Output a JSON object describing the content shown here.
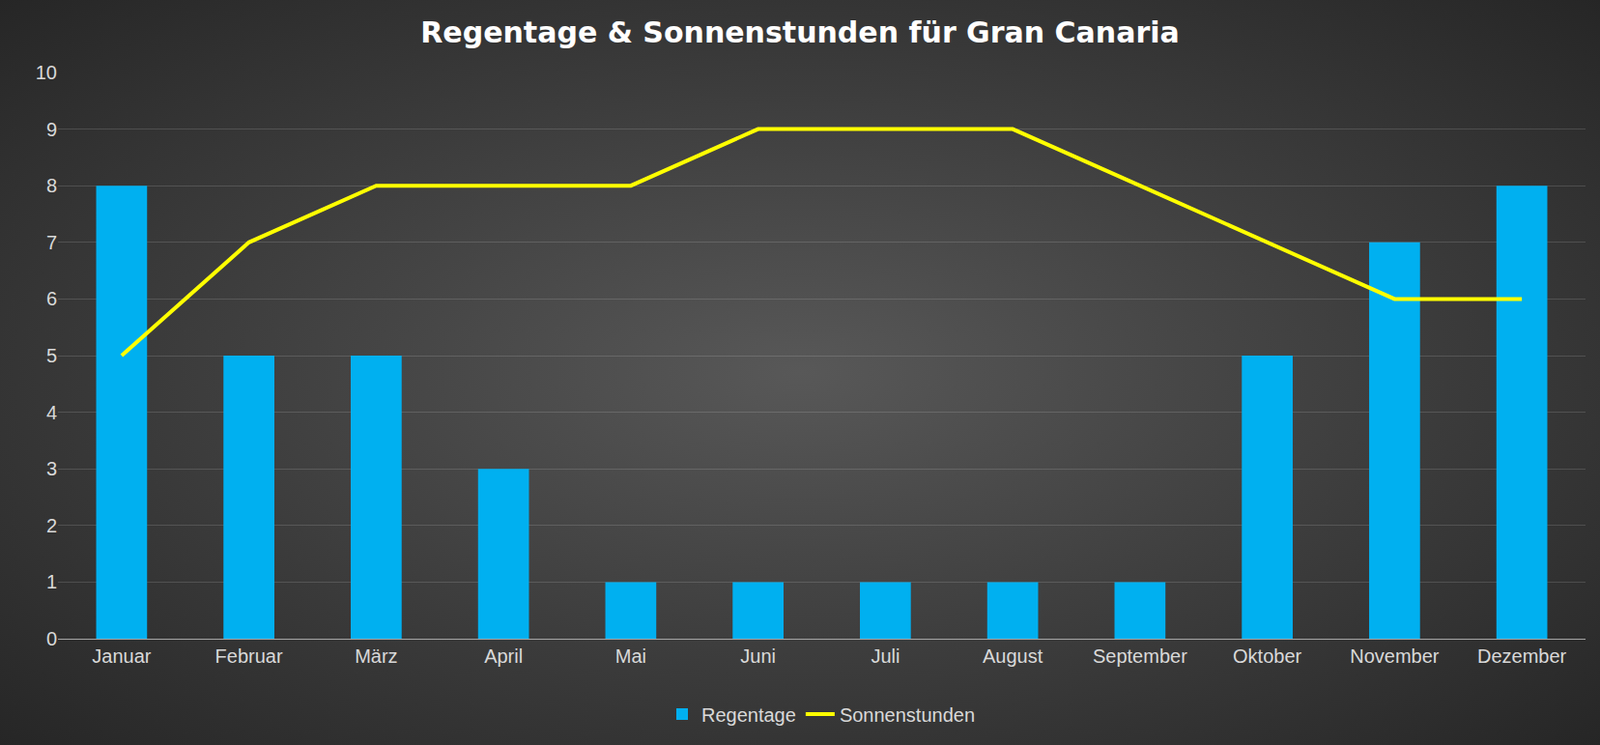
{
  "chart_data": {
    "type": "bar",
    "title": "Regentage & Sonnenstunden für Gran Canaria",
    "categories": [
      "Januar",
      "Februar",
      "März",
      "April",
      "Mai",
      "Juni",
      "Juli",
      "August",
      "September",
      "Oktober",
      "November",
      "Dezember"
    ],
    "series": [
      {
        "name": "Regentage",
        "type": "bar",
        "color": "#00b0f0",
        "values": [
          8,
          5,
          5,
          3,
          1,
          1,
          1,
          1,
          1,
          5,
          7,
          8
        ]
      },
      {
        "name": "Sonnenstunden",
        "type": "line",
        "color": "#ffff00",
        "values": [
          5,
          7,
          8,
          8,
          8,
          9,
          9,
          9,
          8,
          7,
          6,
          6
        ]
      }
    ],
    "ylim": [
      0,
      10
    ],
    "yticks": [
      0,
      1,
      2,
      3,
      4,
      5,
      6,
      7,
      8,
      9,
      10
    ],
    "grid": true,
    "legend": "bottom"
  }
}
